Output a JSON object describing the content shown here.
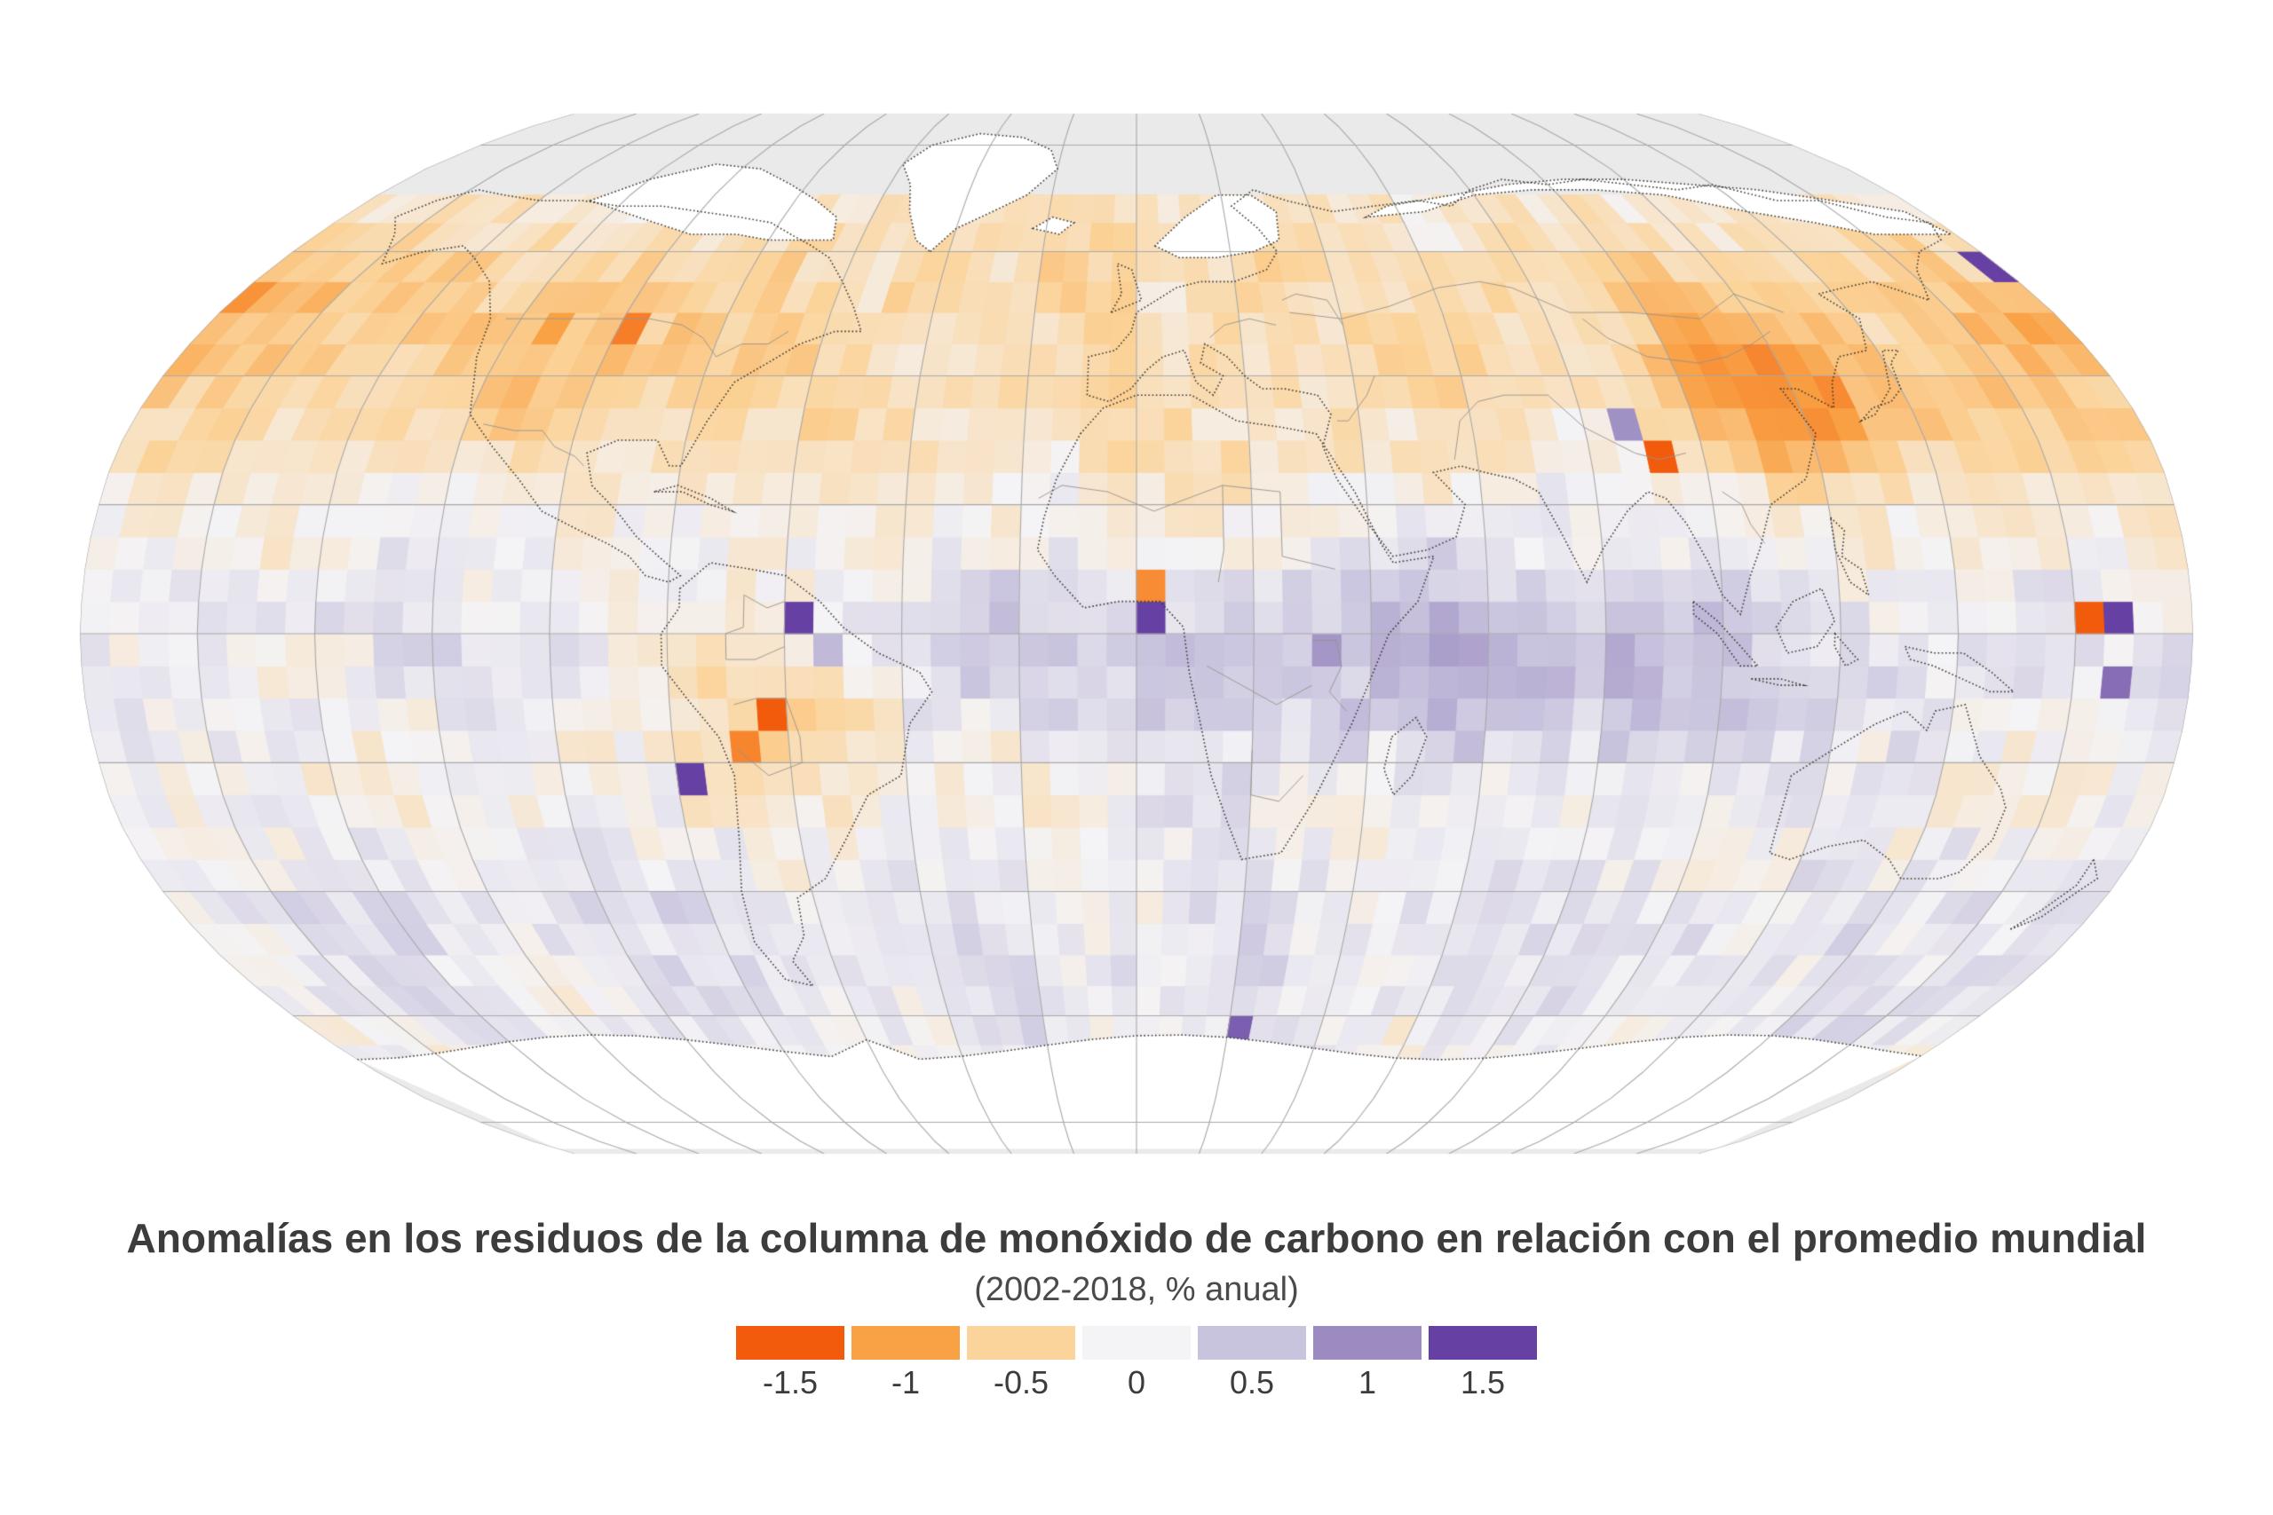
{
  "title": "Anomalías en los residuos de la columna de monóxido de carbono en relación con el promedio mundial",
  "subtitle": "(2002-2018, % anual)",
  "text_color": "#3c3c3c",
  "subtitle_color": "#4a4a4a",
  "legend": {
    "values": [
      -1.5,
      -1,
      -0.5,
      0,
      0.5,
      1,
      1.5
    ],
    "items": [
      {
        "label": "-1.5",
        "color": "#f25a0c"
      },
      {
        "label": "-1",
        "color": "#f9a145"
      },
      {
        "label": "-0.5",
        "color": "#fbd49b"
      },
      {
        "label": "0",
        "color": "#f4f3f5"
      },
      {
        "label": "0.5",
        "color": "#c9c4de"
      },
      {
        "label": "1",
        "color": "#9b8bc1"
      },
      {
        "label": "1.5",
        "color": "#6640a3"
      }
    ]
  },
  "map": {
    "projection": "robinson",
    "ocean_color": "#eaeaea",
    "nodata_land_color": "#ffffff",
    "graticule_color": "#a9a9a9",
    "coastline_color": "#3a362f",
    "border_color": "#9a938c",
    "graticule_step_deg": 20,
    "cell_size_deg": 5,
    "data_lat_range": [
      -70,
      70
    ]
  },
  "anomaly_field": {
    "seed": 11,
    "noise_cell": 0.17,
    "noise_patch": 0.11,
    "features": [
      {
        "lon": 0,
        "lat": 40,
        "slon": 1000,
        "slat": 16,
        "amp": -0.38
      },
      {
        "lon": 0,
        "lat": 63,
        "slon": 1000,
        "slat": 7,
        "amp": -0.18
      },
      {
        "lon": 40,
        "lat": -3,
        "slon": 38,
        "slat": 12,
        "amp": 0.55
      },
      {
        "lon": 90,
        "lat": -8,
        "slon": 25,
        "slat": 12,
        "amp": 0.3
      },
      {
        "lon": 0,
        "lat": -47,
        "slon": 1000,
        "slat": 14,
        "amp": 0.16
      },
      {
        "lon": 0,
        "lat": -25,
        "slon": 1000,
        "slat": 9,
        "amp": -0.1
      },
      {
        "lon": 115,
        "lat": 37,
        "slon": 13,
        "slat": 9,
        "amp": -0.8
      },
      {
        "lon": -100,
        "lat": 44,
        "slon": 24,
        "slat": 11,
        "amp": -0.22
      },
      {
        "lon": -60,
        "lat": -10,
        "slon": 11,
        "slat": 8,
        "amp": -0.65
      },
      {
        "lon": -27,
        "lat": -3,
        "slon": 16,
        "slat": 10,
        "amp": 0.28
      },
      {
        "lon": -168,
        "lat": 52,
        "slon": 22,
        "slat": 7,
        "amp": -0.35
      },
      {
        "lon": 160,
        "lat": 40,
        "slon": 25,
        "slat": 10,
        "amp": -0.28
      },
      {
        "lon": -120,
        "lat": 5,
        "slon": 35,
        "slat": 14,
        "amp": 0.15
      },
      {
        "lon": 150,
        "lat": -5,
        "slon": 30,
        "slat": 12,
        "amp": 0.12
      },
      {
        "lon": 75,
        "lat": 25,
        "slon": 15,
        "slat": 8,
        "amp": 0.25
      }
    ],
    "outlier_cells": [
      [
        -77.5,
        50,
        1.7
      ],
      [
        -82.5,
        50,
        -1.3
      ],
      [
        -120,
        57.5,
        -1.5
      ],
      [
        -105,
        52.5,
        -1.15
      ],
      [
        -97.5,
        47.5,
        -1.25
      ],
      [
        -112.5,
        47.5,
        -1.0
      ],
      [
        60,
        67.5,
        -1.7
      ],
      [
        92.5,
        27.5,
        -1.6
      ],
      [
        87.5,
        32.5,
        0.95
      ],
      [
        95,
        0,
        -1.5
      ],
      [
        120,
        -2.5,
        0.85
      ],
      [
        117.5,
        -5,
        -0.9
      ],
      [
        145,
        -5,
        -1.35
      ],
      [
        152.5,
        -5,
        1.1
      ],
      [
        162.5,
        2.5,
        -1.6
      ],
      [
        167.5,
        2.5,
        1.7
      ],
      [
        165,
        -2.5,
        -1.2
      ],
      [
        167.5,
        -7.5,
        1.2
      ],
      [
        177.5,
        57.5,
        1.6
      ],
      [
        -177.5,
        52.5,
        -1.1
      ],
      [
        2.5,
        7.5,
        -1.15
      ],
      [
        2.5,
        2.5,
        1.75
      ],
      [
        32.5,
        -2.5,
        0.9
      ],
      [
        35,
        -7.5,
        0.85
      ],
      [
        30,
        -5,
        -0.5
      ],
      [
        -57.5,
        2.5,
        1.7
      ],
      [
        -55,
        -7.5,
        1.6
      ],
      [
        -77.5,
        -22.5,
        1.5
      ],
      [
        -62.5,
        -12.5,
        -1.7
      ],
      [
        -67.5,
        -17.5,
        -1.2
      ],
      [
        -52.5,
        -2.5,
        0.6
      ],
      [
        165,
        -52.5,
        1.7
      ],
      [
        22.5,
        -62.5,
        1.3
      ],
      [
        130,
        -57.5,
        0.9
      ]
    ]
  }
}
